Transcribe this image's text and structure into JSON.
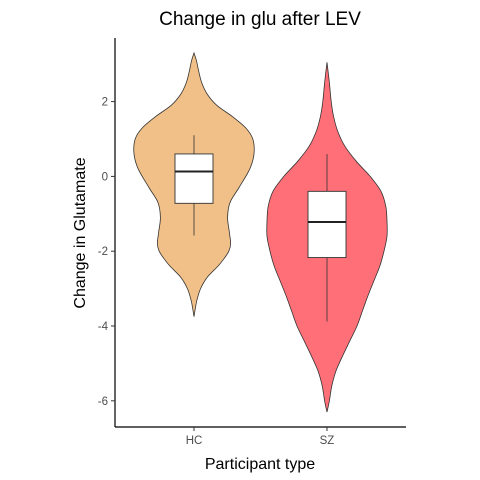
{
  "chart_data": {
    "type": "violin",
    "title": "Change in glu after LEV",
    "xlabel": "Participant type",
    "ylabel": "Change in Glutamate",
    "categories": [
      "HC",
      "SZ"
    ],
    "ylim": [
      -6.7,
      3.7
    ],
    "yticks": [
      -6,
      -4,
      -2,
      0,
      2
    ],
    "grid": false,
    "legend": "none",
    "colors": [
      "#F0C088",
      "#FF6F78"
    ],
    "groups": [
      {
        "category": "HC",
        "range": [
          -3.75,
          3.3
        ],
        "box": {
          "whisker_low": -1.58,
          "q1": -0.72,
          "median": 0.13,
          "q3": 0.6,
          "whisker_high": 1.1
        },
        "density_profile": [
          [
            -3.75,
            0.0
          ],
          [
            -3.55,
            0.02
          ],
          [
            -3.3,
            0.05
          ],
          [
            -3.0,
            0.11
          ],
          [
            -2.7,
            0.22
          ],
          [
            -2.4,
            0.4
          ],
          [
            -2.2,
            0.5
          ],
          [
            -2.0,
            0.58
          ],
          [
            -1.8,
            0.61
          ],
          [
            -1.5,
            0.59
          ],
          [
            -1.1,
            0.56
          ],
          [
            -0.7,
            0.6
          ],
          [
            -0.3,
            0.75
          ],
          [
            0.2,
            0.93
          ],
          [
            0.6,
            1.0
          ],
          [
            1.0,
            0.98
          ],
          [
            1.3,
            0.86
          ],
          [
            1.6,
            0.64
          ],
          [
            1.9,
            0.38
          ],
          [
            2.2,
            0.22
          ],
          [
            2.5,
            0.13
          ],
          [
            2.8,
            0.08
          ],
          [
            3.1,
            0.04
          ],
          [
            3.3,
            0.0
          ]
        ]
      },
      {
        "category": "SZ",
        "range": [
          -6.3,
          3.05
        ],
        "box": {
          "whisker_low": -3.88,
          "q1": -2.17,
          "median": -1.22,
          "q3": -0.4,
          "whisker_high": 0.6
        },
        "density_profile": [
          [
            -6.3,
            0.0
          ],
          [
            -6.0,
            0.04
          ],
          [
            -5.6,
            0.08
          ],
          [
            -5.2,
            0.15
          ],
          [
            -4.8,
            0.26
          ],
          [
            -4.4,
            0.38
          ],
          [
            -4.0,
            0.5
          ],
          [
            -3.6,
            0.59
          ],
          [
            -3.2,
            0.68
          ],
          [
            -2.8,
            0.78
          ],
          [
            -2.4,
            0.88
          ],
          [
            -2.0,
            0.95
          ],
          [
            -1.6,
            1.0
          ],
          [
            -1.2,
            1.0
          ],
          [
            -0.8,
            0.98
          ],
          [
            -0.4,
            0.9
          ],
          [
            0.0,
            0.72
          ],
          [
            0.4,
            0.49
          ],
          [
            0.8,
            0.3
          ],
          [
            1.2,
            0.18
          ],
          [
            1.6,
            0.11
          ],
          [
            2.0,
            0.07
          ],
          [
            2.5,
            0.04
          ],
          [
            3.05,
            0.0
          ]
        ]
      }
    ]
  }
}
